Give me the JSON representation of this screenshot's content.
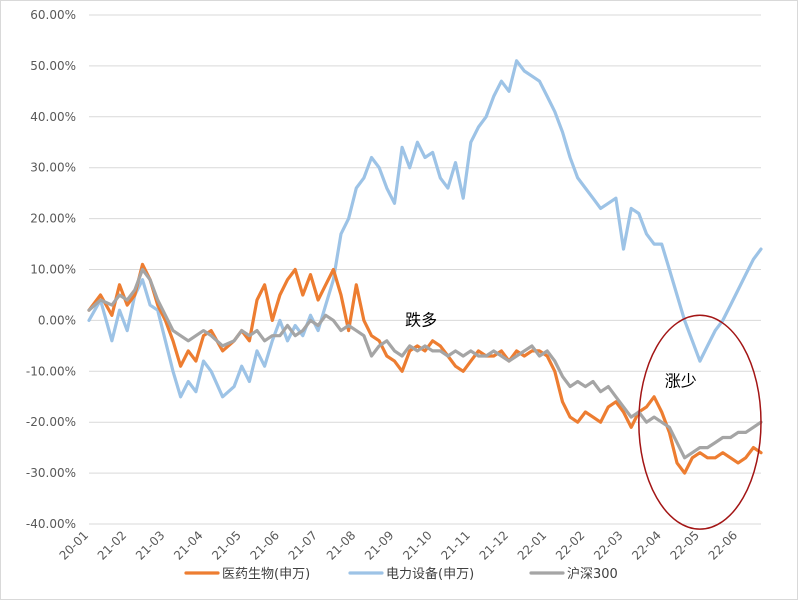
{
  "chart_data": {
    "type": "line",
    "title": "",
    "xlabel": "",
    "ylabel": "",
    "ylim": [
      -40,
      60
    ],
    "yticks": [
      60,
      50,
      40,
      30,
      20,
      10,
      0,
      -10,
      -20,
      -30,
      -40
    ],
    "ytick_labels": [
      "60.00%",
      "50.00%",
      "40.00%",
      "30.00%",
      "20.00%",
      "10.00%",
      "0.00%",
      "-10.00%",
      "-20.00%",
      "-30.00%",
      "-40.00%"
    ],
    "x_ticks": [
      "20-01",
      "21-02",
      "21-03",
      "21-04",
      "21-05",
      "21-06",
      "21-07",
      "21-08",
      "21-09",
      "21-10",
      "21-11",
      "21-12",
      "22-01",
      "22-02",
      "22-03",
      "22-04",
      "22-05",
      "22-06"
    ],
    "grid": true,
    "legend_position": "bottom",
    "series": [
      {
        "name": "医药生物(申万)",
        "color": "#ed7d31",
        "x": [
          0.0,
          0.3,
          0.6,
          0.8,
          1.0,
          1.2,
          1.4,
          1.6,
          1.8,
          2.0,
          2.2,
          2.4,
          2.6,
          2.8,
          3.0,
          3.2,
          3.5,
          3.8,
          4.0,
          4.2,
          4.4,
          4.6,
          4.8,
          5.0,
          5.2,
          5.4,
          5.6,
          5.8,
          6.0,
          6.2,
          6.4,
          6.6,
          6.8,
          7.0,
          7.2,
          7.4,
          7.6,
          7.8,
          8.0,
          8.2,
          8.4,
          8.6,
          8.8,
          9.0,
          9.2,
          9.4,
          9.6,
          9.8,
          10.0,
          10.2,
          10.4,
          10.6,
          10.8,
          11.0,
          11.2,
          11.4,
          11.6,
          11.8,
          12.0,
          12.2,
          12.4,
          12.6,
          12.8,
          13.0,
          13.2,
          13.4,
          13.6,
          13.8,
          14.0,
          14.2,
          14.4,
          14.6,
          14.8,
          15.0,
          15.2,
          15.4,
          15.6,
          15.8,
          16.0,
          16.2,
          16.4,
          16.6,
          16.8,
          17.0,
          17.2,
          17.4,
          17.6
        ],
        "values": [
          2,
          5,
          1,
          7,
          3,
          5,
          11,
          8,
          3,
          0,
          -4,
          -9,
          -6,
          -8,
          -3,
          -2,
          -6,
          -4,
          -2,
          -4,
          4,
          7,
          0,
          5,
          8,
          10,
          5,
          9,
          4,
          7,
          10,
          5,
          -2,
          7,
          0,
          -3,
          -4,
          -7,
          -8,
          -10,
          -6,
          -5,
          -6,
          -4,
          -5,
          -7,
          -9,
          -10,
          -8,
          -6,
          -7,
          -7,
          -6,
          -8,
          -6,
          -7,
          -6,
          -6,
          -7,
          -10,
          -16,
          -19,
          -20,
          -18,
          -19,
          -20,
          -17,
          -16,
          -18,
          -21,
          -18,
          -17,
          -15,
          -18,
          -22,
          -28,
          -30,
          -27,
          -26,
          -27,
          -27,
          -26,
          -27,
          -28,
          -27,
          -25,
          -26
        ],
        "dash_segment": true
      },
      {
        "name": "电力设备(申万)",
        "color": "#9dc3e6",
        "x": [
          0.0,
          0.3,
          0.6,
          0.8,
          1.0,
          1.2,
          1.4,
          1.6,
          1.8,
          2.0,
          2.2,
          2.4,
          2.6,
          2.8,
          3.0,
          3.2,
          3.5,
          3.8,
          4.0,
          4.2,
          4.4,
          4.6,
          4.8,
          5.0,
          5.2,
          5.4,
          5.6,
          5.8,
          6.0,
          6.2,
          6.4,
          6.6,
          6.8,
          7.0,
          7.2,
          7.4,
          7.6,
          7.8,
          8.0,
          8.2,
          8.4,
          8.6,
          8.8,
          9.0,
          9.2,
          9.4,
          9.6,
          9.8,
          10.0,
          10.2,
          10.4,
          10.6,
          10.8,
          11.0,
          11.2,
          11.4,
          11.6,
          11.8,
          12.0,
          12.2,
          12.4,
          12.6,
          12.8,
          13.0,
          13.2,
          13.4,
          13.6,
          13.8,
          14.0,
          14.2,
          14.4,
          14.6,
          14.8,
          15.0,
          15.2,
          15.4,
          15.6,
          15.8,
          16.0,
          16.2,
          16.4,
          16.6,
          16.8,
          17.0,
          17.2,
          17.4,
          17.6
        ],
        "values": [
          0,
          4,
          -4,
          2,
          -2,
          5,
          8,
          3,
          2,
          -4,
          -10,
          -15,
          -12,
          -14,
          -8,
          -10,
          -15,
          -13,
          -9,
          -12,
          -6,
          -9,
          -4,
          0,
          -4,
          -1,
          -3,
          1,
          -2,
          3,
          8,
          17,
          20,
          26,
          28,
          32,
          30,
          26,
          23,
          34,
          30,
          35,
          32,
          33,
          28,
          26,
          31,
          24,
          35,
          38,
          40,
          44,
          47,
          45,
          51,
          49,
          48,
          47,
          44,
          41,
          37,
          32,
          28,
          26,
          24,
          22,
          23,
          24,
          14,
          22,
          21,
          17,
          15,
          15,
          10,
          5,
          0,
          -4,
          -8,
          -5,
          -2,
          0,
          3,
          6,
          9,
          12,
          14
        ]
      },
      {
        "name": "沪深300",
        "color": "#a5a5a5",
        "x": [
          0.0,
          0.3,
          0.6,
          0.8,
          1.0,
          1.2,
          1.4,
          1.6,
          1.8,
          2.0,
          2.2,
          2.4,
          2.6,
          2.8,
          3.0,
          3.2,
          3.5,
          3.8,
          4.0,
          4.2,
          4.4,
          4.6,
          4.8,
          5.0,
          5.2,
          5.4,
          5.6,
          5.8,
          6.0,
          6.2,
          6.4,
          6.6,
          6.8,
          7.0,
          7.2,
          7.4,
          7.6,
          7.8,
          8.0,
          8.2,
          8.4,
          8.6,
          8.8,
          9.0,
          9.2,
          9.4,
          9.6,
          9.8,
          10.0,
          10.2,
          10.4,
          10.6,
          10.8,
          11.0,
          11.2,
          11.4,
          11.6,
          11.8,
          12.0,
          12.2,
          12.4,
          12.6,
          12.8,
          13.0,
          13.2,
          13.4,
          13.6,
          13.8,
          14.0,
          14.2,
          14.4,
          14.6,
          14.8,
          15.0,
          15.2,
          15.4,
          15.6,
          15.8,
          16.0,
          16.2,
          16.4,
          16.6,
          16.8,
          17.0,
          17.2,
          17.4,
          17.6
        ],
        "values": [
          2,
          4,
          3,
          5,
          4,
          6,
          10,
          8,
          4,
          1,
          -2,
          -3,
          -4,
          -3,
          -2,
          -3,
          -5,
          -4,
          -2,
          -3,
          -2,
          -4,
          -3,
          -3,
          -1,
          -3,
          -2,
          0,
          -1,
          1,
          0,
          -2,
          -1,
          -2,
          -3,
          -7,
          -5,
          -4,
          -6,
          -7,
          -5,
          -6,
          -5,
          -6,
          -6,
          -7,
          -6,
          -7,
          -6,
          -7,
          -7,
          -6,
          -7,
          -8,
          -7,
          -6,
          -5,
          -7,
          -6,
          -8,
          -11,
          -13,
          -12,
          -13,
          -12,
          -14,
          -13,
          -15,
          -17,
          -19,
          -18,
          -20,
          -19,
          -20,
          -21,
          -24,
          -27,
          -26,
          -25,
          -25,
          -24,
          -23,
          -23,
          -22,
          -22,
          -21,
          -20
        ]
      }
    ],
    "annotations": [
      {
        "text": "跌多",
        "x": 8.7,
        "y": -1
      },
      {
        "text": "涨少",
        "x": 15.5,
        "y": -13
      }
    ],
    "highlight_ellipse": {
      "color": "#a31515",
      "x_center": 16.0,
      "y_center": -20,
      "x_halfwidth": 1.6,
      "y_halfwidth": 21
    }
  }
}
